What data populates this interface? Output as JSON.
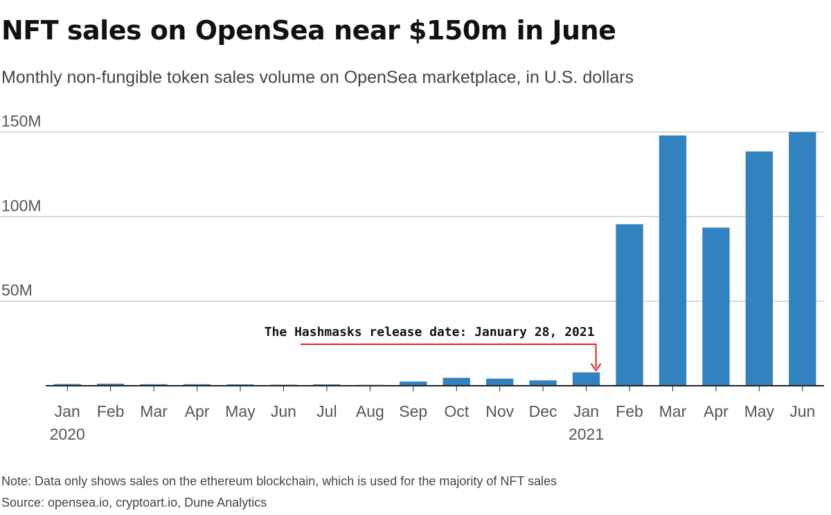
{
  "header": {
    "title": "NFT sales on OpenSea near $150m in June",
    "subtitle": "Monthly non-fungible token sales volume on OpenSea marketplace, in U.S. dollars"
  },
  "footer": {
    "note": "Note: Data only shows sales on the ethereum blockchain, which is used for the majority of NFT sales",
    "source": "Source: opensea.io, cryptoart.io, Dune Analytics"
  },
  "colors": {
    "bar": "#3282c0",
    "grid": "#c8c8c8",
    "baseline": "#222222",
    "annotation_arrow": "#e0211f"
  },
  "chart_data": {
    "type": "bar",
    "title": "NFT sales on OpenSea near $150m in June",
    "subtitle": "Monthly non-fungible token sales volume on OpenSea marketplace, in U.S. dollars",
    "xlabel": "",
    "ylabel": "",
    "categories": [
      "Jan",
      "Feb",
      "Mar",
      "Apr",
      "May",
      "Jun",
      "Jul",
      "Aug",
      "Sep",
      "Oct",
      "Nov",
      "Dec",
      "Jan",
      "Feb",
      "Mar",
      "Apr",
      "May",
      "Jun"
    ],
    "year_labels": [
      "2020",
      "",
      "",
      "",
      "",
      "",
      "",
      "",
      "",
      "",
      "",
      "",
      "2021",
      "",
      "",
      "",
      "",
      ""
    ],
    "values": [
      1.0,
      1.2,
      0.9,
      0.9,
      0.8,
      0.6,
      0.8,
      0.5,
      2.5,
      4.7,
      4.2,
      3.2,
      7.9,
      95.5,
      148,
      93.5,
      138.5,
      150
    ],
    "unit": "million U.S. dollars",
    "ylim": [
      0,
      150
    ],
    "yticks": [
      50,
      100,
      150
    ],
    "ytick_labels": [
      "50M",
      "100M",
      "150M"
    ],
    "grid": true,
    "legend": "none",
    "annotations": [
      {
        "text": "The Hashmasks release date: January 28, 2021",
        "target_category_index": 12
      }
    ]
  }
}
